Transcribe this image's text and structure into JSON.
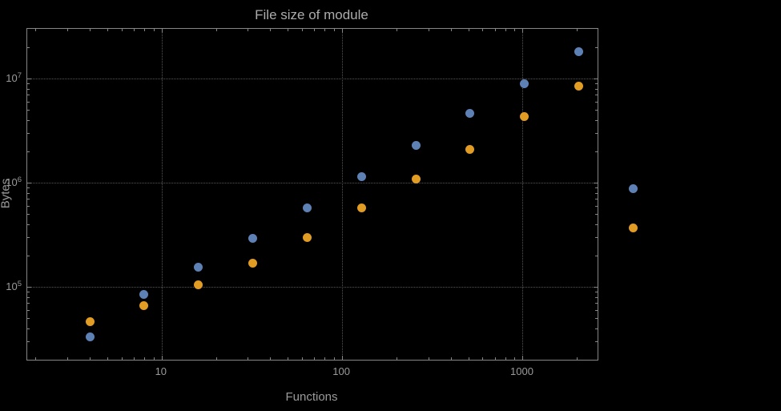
{
  "chart_data": {
    "type": "scatter",
    "title": "File size of module",
    "xlabel": "Functions",
    "ylabel": "Bytes",
    "x_scale": "log",
    "y_scale": "log",
    "xlim": [
      1.8,
      2600
    ],
    "ylim": [
      20000,
      30000000
    ],
    "grid": "dotted-at-major-ticks",
    "legend": "none",
    "x": [
      4,
      8,
      16,
      32,
      64,
      128,
      256,
      512,
      1024,
      2048,
      4096
    ],
    "series": [
      {
        "name": "blue",
        "color": "#5e81b5",
        "values": [
          33000,
          85000,
          155000,
          290000,
          575000,
          1150000,
          2300000,
          4600000,
          8900000,
          18000000,
          880000
        ]
      },
      {
        "name": "orange",
        "color": "#e19c24",
        "values": [
          46000,
          66000,
          105000,
          170000,
          300000,
          570000,
          1080000,
          2100000,
          4300000,
          8500000,
          370000
        ]
      }
    ],
    "x_ticks": [
      {
        "value": 10,
        "label": "10"
      },
      {
        "value": 100,
        "label": "100"
      },
      {
        "value": 1000,
        "label": "1000"
      }
    ],
    "y_ticks": [
      {
        "value": 100000,
        "base": "10",
        "exp": "5"
      },
      {
        "value": 1000000,
        "base": "10",
        "exp": "6"
      },
      {
        "value": 10000000,
        "base": "10",
        "exp": "7"
      }
    ],
    "colors": {
      "background": "#000000",
      "frame": "#868686",
      "grid": "#565656",
      "tick_text": "#9a9a9a",
      "axis_text": "#9a9a9a",
      "title_text": "#acacac",
      "series_blue": "#5e81b5",
      "series_orange": "#e19c24"
    }
  }
}
